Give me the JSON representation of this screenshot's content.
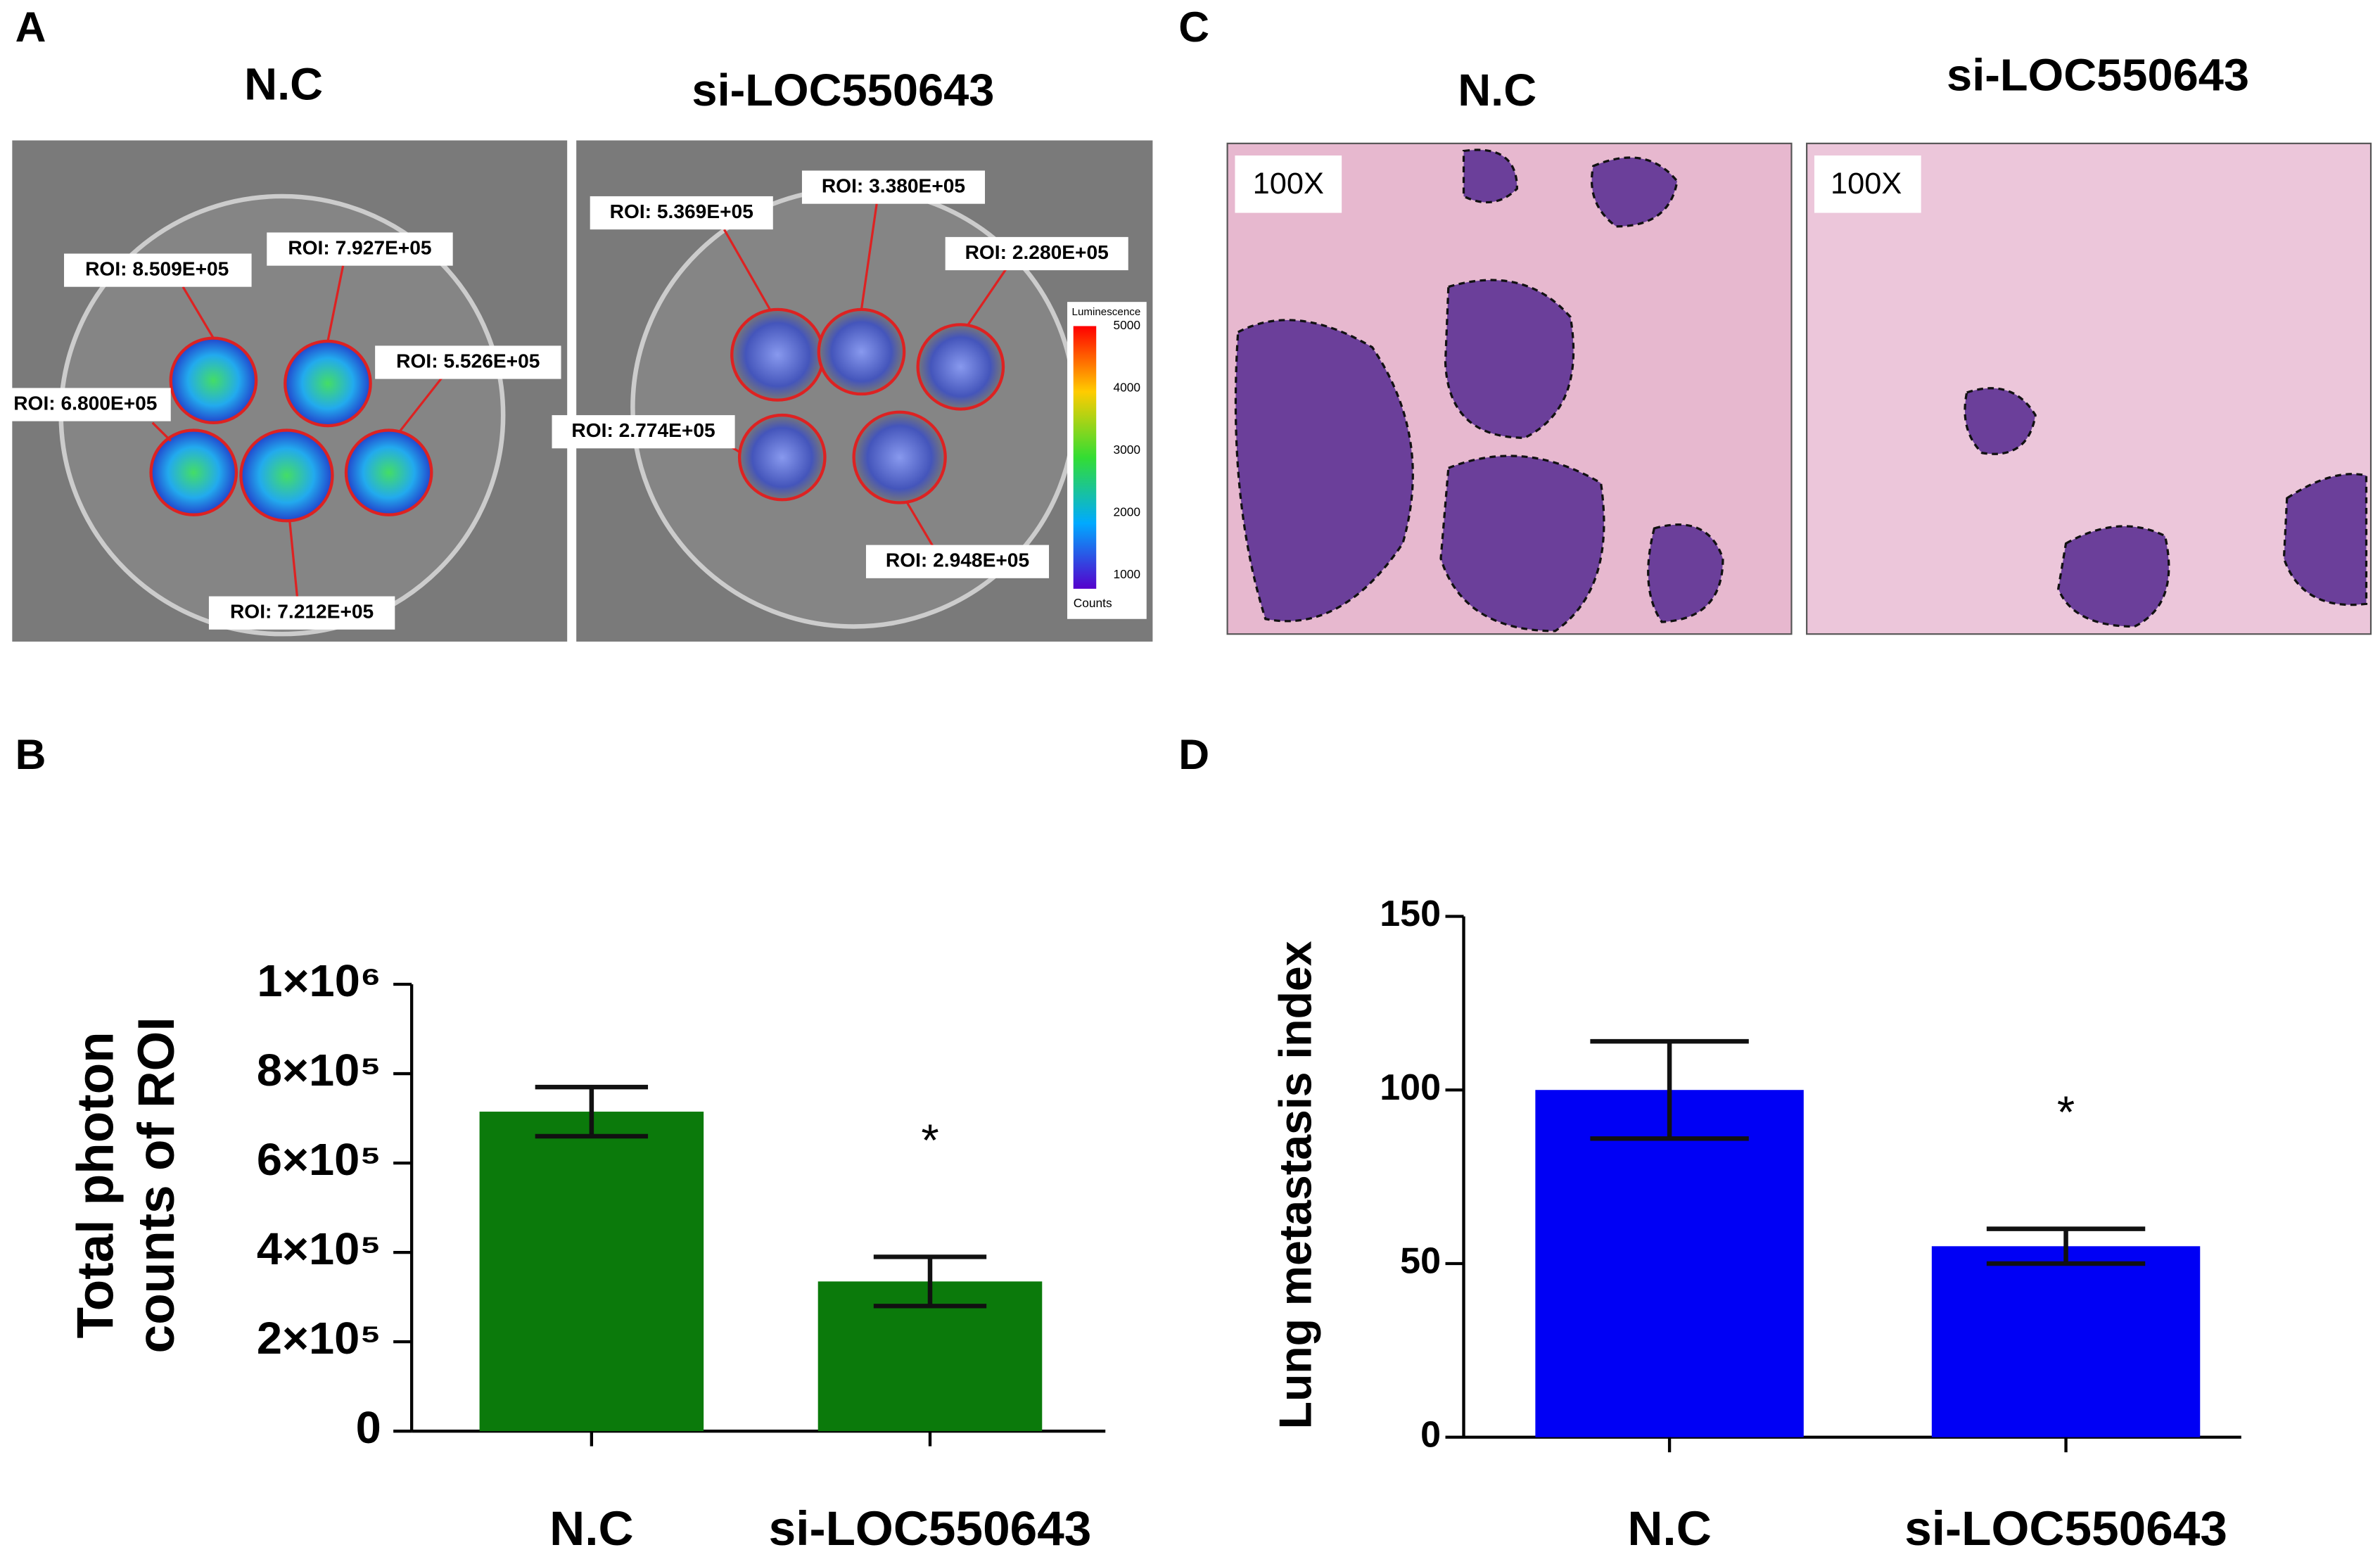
{
  "panels": {
    "A": {
      "letter": "A",
      "titles": [
        "N.C",
        "si-LOC550643"
      ],
      "roi_labels": [
        "ROI: 8.509E+05",
        "ROI: 7.927E+05",
        "ROI: 5.526E+05",
        "ROI: 6.800E+05",
        "ROI: 7.212E+05",
        "ROI: 5.369E+05",
        "ROI: 3.380E+05",
        "ROI: 2.280E+05",
        "ROI: 2.774E+05",
        "ROI: 2.948E+05"
      ],
      "colorbar": {
        "title": "Luminescence",
        "ticks": [
          5000,
          4000,
          3000,
          2000,
          1000
        ],
        "unit": "Counts"
      }
    },
    "B": {
      "letter": "B"
    },
    "C": {
      "letter": "C",
      "titles": [
        "N.C",
        "si-LOC550643"
      ],
      "magnifications": [
        "100X",
        "100X"
      ]
    },
    "D": {
      "letter": "D"
    }
  },
  "chart_data": [
    {
      "type": "bar",
      "ylabel": [
        "Total photon",
        "counts of ROI"
      ],
      "categories": [
        "N.C",
        "si-LOC550643"
      ],
      "values": [
        715000,
        335000
      ],
      "errors": [
        55000,
        55000
      ],
      "color": "#0b7a0b",
      "annotations": [
        "*"
      ],
      "ylim": [
        0,
        1000000
      ],
      "yticks": [
        0,
        {
          "value": 200000,
          "label": "2×10⁵"
        },
        {
          "value": 400000,
          "label": "4×10⁵"
        },
        {
          "value": 600000,
          "label": "6×10⁵"
        },
        {
          "value": 800000,
          "label": "8×10⁵"
        },
        {
          "value": 1000000,
          "label": "1×10⁶"
        }
      ]
    },
    {
      "type": "bar",
      "ylabel": [
        "Lung metastasis index"
      ],
      "categories": [
        "N.C",
        "si-LOC550643"
      ],
      "values": [
        100,
        55
      ],
      "errors": [
        14,
        5
      ],
      "color": "#0000f5",
      "annotations": [
        "*"
      ],
      "ylim": [
        0,
        150
      ],
      "yticks": [
        0,
        50,
        100,
        150
      ]
    }
  ]
}
